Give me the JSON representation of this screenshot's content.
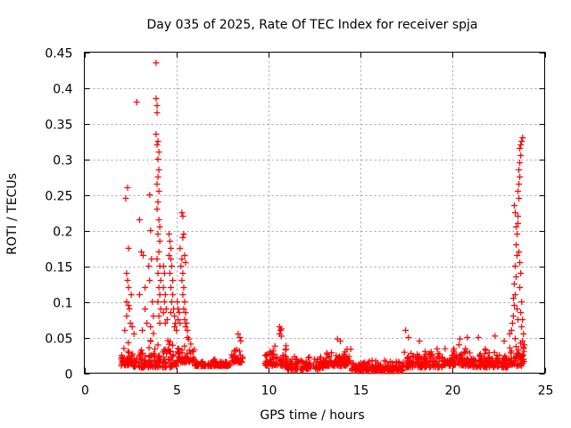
{
  "chart_data": {
    "type": "scatter",
    "title": "Day 035 of 2025, Rate Of TEC Index for receiver spja",
    "xlabel": "GPS time / hours",
    "ylabel": "ROTI / TECUs",
    "xlim": [
      0,
      25
    ],
    "ylim": [
      0,
      0.45
    ],
    "x_ticks": [
      0,
      5,
      10,
      15,
      20,
      25
    ],
    "x_tick_labels": [
      "0",
      "5",
      "10",
      "15",
      "20",
      "25"
    ],
    "y_ticks": [
      0,
      0.05,
      0.1,
      0.15,
      0.2,
      0.25,
      0.3,
      0.35,
      0.4,
      0.45
    ],
    "y_tick_labels": [
      "0",
      "0.05",
      "0.1",
      "0.15",
      "0.2",
      "0.25",
      "0.3",
      "0.35",
      "0.4",
      "0.45"
    ],
    "grid": true,
    "marker": "+",
    "series": [
      {
        "name": "ROTI",
        "color": "#ff0000",
        "segments": [
          {
            "x0": 2.0,
            "x1": 2.6,
            "min": 0.01,
            "max": 0.045
          },
          {
            "x0": 2.6,
            "x1": 3.5,
            "min": 0.008,
            "max": 0.035
          },
          {
            "x0": 3.5,
            "x1": 5.0,
            "min": 0.008,
            "max": 0.06
          },
          {
            "x0": 5.0,
            "x1": 6.0,
            "min": 0.015,
            "max": 0.055
          },
          {
            "x0": 6.0,
            "x1": 8.0,
            "min": 0.01,
            "max": 0.02
          },
          {
            "x0": 8.0,
            "x1": 8.6,
            "min": 0.015,
            "max": 0.04
          },
          {
            "x0": 9.8,
            "x1": 11.0,
            "min": 0.01,
            "max": 0.04
          },
          {
            "x0": 11.0,
            "x1": 13.0,
            "min": 0.005,
            "max": 0.025
          },
          {
            "x0": 13.0,
            "x1": 14.5,
            "min": 0.01,
            "max": 0.04
          },
          {
            "x0": 14.5,
            "x1": 17.3,
            "min": 0.003,
            "max": 0.02
          },
          {
            "x0": 17.3,
            "x1": 19.5,
            "min": 0.008,
            "max": 0.04
          },
          {
            "x0": 19.5,
            "x1": 21.0,
            "min": 0.01,
            "max": 0.045
          },
          {
            "x0": 21.0,
            "x1": 23.0,
            "min": 0.008,
            "max": 0.035
          },
          {
            "x0": 23.0,
            "x1": 23.9,
            "min": 0.01,
            "max": 0.06
          }
        ],
        "points": [
          {
            "x": 2.25,
            "y": 0.245
          },
          {
            "x": 2.35,
            "y": 0.26
          },
          {
            "x": 2.4,
            "y": 0.175
          },
          {
            "x": 2.3,
            "y": 0.14
          },
          {
            "x": 2.35,
            "y": 0.13
          },
          {
            "x": 2.4,
            "y": 0.12
          },
          {
            "x": 2.3,
            "y": 0.1
          },
          {
            "x": 2.4,
            "y": 0.095
          },
          {
            "x": 2.45,
            "y": 0.09
          },
          {
            "x": 2.3,
            "y": 0.08
          },
          {
            "x": 2.5,
            "y": 0.07
          },
          {
            "x": 2.6,
            "y": 0.065
          },
          {
            "x": 2.2,
            "y": 0.06
          },
          {
            "x": 2.7,
            "y": 0.055
          },
          {
            "x": 2.55,
            "y": 0.11
          },
          {
            "x": 2.85,
            "y": 0.38
          },
          {
            "x": 3.0,
            "y": 0.215
          },
          {
            "x": 3.1,
            "y": 0.17
          },
          {
            "x": 3.2,
            "y": 0.165
          },
          {
            "x": 3.3,
            "y": 0.12
          },
          {
            "x": 3.0,
            "y": 0.11
          },
          {
            "x": 3.15,
            "y": 0.06
          },
          {
            "x": 3.4,
            "y": 0.07
          },
          {
            "x": 3.3,
            "y": 0.09
          },
          {
            "x": 3.55,
            "y": 0.25
          },
          {
            "x": 3.6,
            "y": 0.2
          },
          {
            "x": 3.5,
            "y": 0.15
          },
          {
            "x": 3.65,
            "y": 0.16
          },
          {
            "x": 3.55,
            "y": 0.13
          },
          {
            "x": 3.7,
            "y": 0.1
          },
          {
            "x": 3.75,
            "y": 0.08
          },
          {
            "x": 3.6,
            "y": 0.065
          },
          {
            "x": 3.9,
            "y": 0.435
          },
          {
            "x": 3.9,
            "y": 0.385
          },
          {
            "x": 3.95,
            "y": 0.375
          },
          {
            "x": 3.95,
            "y": 0.365
          },
          {
            "x": 3.9,
            "y": 0.335
          },
          {
            "x": 3.95,
            "y": 0.32
          },
          {
            "x": 4.0,
            "y": 0.325
          },
          {
            "x": 4.05,
            "y": 0.31
          },
          {
            "x": 4.0,
            "y": 0.3
          },
          {
            "x": 4.05,
            "y": 0.285
          },
          {
            "x": 4.0,
            "y": 0.275
          },
          {
            "x": 3.95,
            "y": 0.265
          },
          {
            "x": 4.05,
            "y": 0.255
          },
          {
            "x": 4.0,
            "y": 0.24
          },
          {
            "x": 3.95,
            "y": 0.23
          },
          {
            "x": 4.05,
            "y": 0.215
          },
          {
            "x": 4.1,
            "y": 0.205
          },
          {
            "x": 4.0,
            "y": 0.195
          },
          {
            "x": 4.1,
            "y": 0.185
          },
          {
            "x": 4.05,
            "y": 0.17
          },
          {
            "x": 3.95,
            "y": 0.16
          },
          {
            "x": 4.1,
            "y": 0.15
          },
          {
            "x": 4.0,
            "y": 0.14
          },
          {
            "x": 4.15,
            "y": 0.13
          },
          {
            "x": 4.05,
            "y": 0.12
          },
          {
            "x": 4.1,
            "y": 0.11
          },
          {
            "x": 4.0,
            "y": 0.1
          },
          {
            "x": 4.15,
            "y": 0.09
          },
          {
            "x": 4.05,
            "y": 0.08
          },
          {
            "x": 4.1,
            "y": 0.07
          },
          {
            "x": 4.3,
            "y": 0.15
          },
          {
            "x": 4.35,
            "y": 0.14
          },
          {
            "x": 4.3,
            "y": 0.12
          },
          {
            "x": 4.4,
            "y": 0.11
          },
          {
            "x": 4.35,
            "y": 0.1
          },
          {
            "x": 4.45,
            "y": 0.09
          },
          {
            "x": 4.3,
            "y": 0.085
          },
          {
            "x": 4.5,
            "y": 0.075
          },
          {
            "x": 4.4,
            "y": 0.07
          },
          {
            "x": 4.6,
            "y": 0.195
          },
          {
            "x": 4.65,
            "y": 0.185
          },
          {
            "x": 4.7,
            "y": 0.175
          },
          {
            "x": 4.6,
            "y": 0.165
          },
          {
            "x": 4.7,
            "y": 0.16
          },
          {
            "x": 4.75,
            "y": 0.15
          },
          {
            "x": 4.65,
            "y": 0.14
          },
          {
            "x": 4.8,
            "y": 0.13
          },
          {
            "x": 4.7,
            "y": 0.12
          },
          {
            "x": 4.8,
            "y": 0.11
          },
          {
            "x": 4.75,
            "y": 0.1
          },
          {
            "x": 4.85,
            "y": 0.09
          },
          {
            "x": 4.7,
            "y": 0.085
          },
          {
            "x": 4.9,
            "y": 0.08
          },
          {
            "x": 4.95,
            "y": 0.07
          },
          {
            "x": 4.9,
            "y": 0.065
          },
          {
            "x": 5.0,
            "y": 0.06
          },
          {
            "x": 5.05,
            "y": 0.1
          },
          {
            "x": 5.1,
            "y": 0.09
          },
          {
            "x": 5.15,
            "y": 0.085
          },
          {
            "x": 5.1,
            "y": 0.075
          },
          {
            "x": 5.2,
            "y": 0.07
          },
          {
            "x": 5.2,
            "y": 0.175
          },
          {
            "x": 5.3,
            "y": 0.16
          },
          {
            "x": 5.25,
            "y": 0.15
          },
          {
            "x": 5.35,
            "y": 0.14
          },
          {
            "x": 5.3,
            "y": 0.13
          },
          {
            "x": 5.4,
            "y": 0.12
          },
          {
            "x": 5.35,
            "y": 0.11
          },
          {
            "x": 5.45,
            "y": 0.1
          },
          {
            "x": 5.4,
            "y": 0.09
          },
          {
            "x": 5.5,
            "y": 0.085
          },
          {
            "x": 5.45,
            "y": 0.075
          },
          {
            "x": 5.55,
            "y": 0.07
          },
          {
            "x": 5.6,
            "y": 0.06
          },
          {
            "x": 5.5,
            "y": 0.065
          },
          {
            "x": 5.6,
            "y": 0.05
          },
          {
            "x": 5.3,
            "y": 0.225
          },
          {
            "x": 5.35,
            "y": 0.22
          },
          {
            "x": 5.4,
            "y": 0.195
          },
          {
            "x": 5.35,
            "y": 0.19
          },
          {
            "x": 5.45,
            "y": 0.165
          },
          {
            "x": 5.5,
            "y": 0.155
          },
          {
            "x": 8.35,
            "y": 0.055
          },
          {
            "x": 8.45,
            "y": 0.05
          },
          {
            "x": 8.5,
            "y": 0.045
          },
          {
            "x": 10.6,
            "y": 0.065
          },
          {
            "x": 10.65,
            "y": 0.06
          },
          {
            "x": 10.7,
            "y": 0.062
          },
          {
            "x": 10.6,
            "y": 0.055
          },
          {
            "x": 10.7,
            "y": 0.052
          },
          {
            "x": 13.75,
            "y": 0.048
          },
          {
            "x": 13.9,
            "y": 0.045
          },
          {
            "x": 17.45,
            "y": 0.06
          },
          {
            "x": 17.6,
            "y": 0.05
          },
          {
            "x": 18.2,
            "y": 0.045
          },
          {
            "x": 20.4,
            "y": 0.048
          },
          {
            "x": 20.8,
            "y": 0.05
          },
          {
            "x": 21.4,
            "y": 0.05
          },
          {
            "x": 22.3,
            "y": 0.052
          },
          {
            "x": 22.8,
            "y": 0.045
          },
          {
            "x": 23.1,
            "y": 0.055
          },
          {
            "x": 23.2,
            "y": 0.06
          },
          {
            "x": 23.25,
            "y": 0.07
          },
          {
            "x": 23.3,
            "y": 0.08
          },
          {
            "x": 23.35,
            "y": 0.095
          },
          {
            "x": 23.3,
            "y": 0.105
          },
          {
            "x": 23.4,
            "y": 0.11
          },
          {
            "x": 23.35,
            "y": 0.125
          },
          {
            "x": 23.45,
            "y": 0.135
          },
          {
            "x": 23.4,
            "y": 0.15
          },
          {
            "x": 23.5,
            "y": 0.165
          },
          {
            "x": 23.45,
            "y": 0.18
          },
          {
            "x": 23.5,
            "y": 0.195
          },
          {
            "x": 23.45,
            "y": 0.205
          },
          {
            "x": 23.55,
            "y": 0.21
          },
          {
            "x": 23.35,
            "y": 0.235
          },
          {
            "x": 23.4,
            "y": 0.225
          },
          {
            "x": 23.55,
            "y": 0.22
          },
          {
            "x": 23.6,
            "y": 0.245
          },
          {
            "x": 23.55,
            "y": 0.255
          },
          {
            "x": 23.6,
            "y": 0.265
          },
          {
            "x": 23.65,
            "y": 0.275
          },
          {
            "x": 23.6,
            "y": 0.285
          },
          {
            "x": 23.65,
            "y": 0.295
          },
          {
            "x": 23.7,
            "y": 0.305
          },
          {
            "x": 23.65,
            "y": 0.315
          },
          {
            "x": 23.75,
            "y": 0.325
          },
          {
            "x": 23.8,
            "y": 0.33
          },
          {
            "x": 23.7,
            "y": 0.32
          },
          {
            "x": 23.6,
            "y": 0.17
          },
          {
            "x": 23.65,
            "y": 0.155
          },
          {
            "x": 23.7,
            "y": 0.14
          },
          {
            "x": 23.65,
            "y": 0.12
          },
          {
            "x": 23.75,
            "y": 0.1
          },
          {
            "x": 23.7,
            "y": 0.085
          },
          {
            "x": 23.8,
            "y": 0.075
          },
          {
            "x": 23.75,
            "y": 0.065
          },
          {
            "x": 23.85,
            "y": 0.055
          },
          {
            "x": 23.8,
            "y": 0.045
          },
          {
            "x": 23.5,
            "y": 0.09
          },
          {
            "x": 23.55,
            "y": 0.075
          }
        ]
      }
    ]
  }
}
